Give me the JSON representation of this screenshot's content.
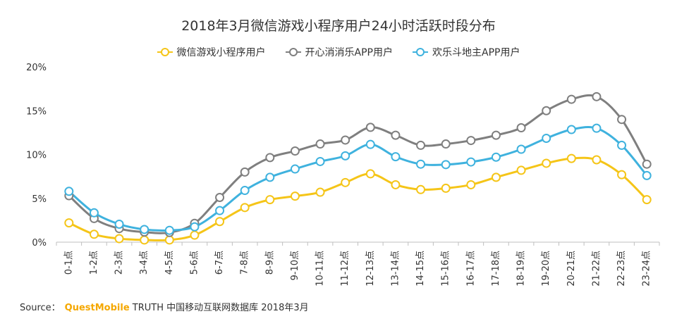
{
  "title": "2018年3月微信游戏小程序用户24小时活跃时段分布",
  "source": {
    "label": "Source：",
    "brand": "QuestMobile",
    "text": "TRUTH 中国移动互联网数据库 2018年3月"
  },
  "chart_data": {
    "type": "line",
    "title": "2018年3月微信游戏小程序用户24小时活跃时段分布",
    "xlabel": "",
    "ylabel": "",
    "ylim": [
      0,
      20
    ],
    "yticks": [
      "0%",
      "5%",
      "10%",
      "15%",
      "20%"
    ],
    "grid": false,
    "legend_position": "top",
    "categories": [
      "0-1点",
      "1-2点",
      "2-3点",
      "3-4点",
      "4-5点",
      "5-6点",
      "6-7点",
      "7-8点",
      "8-9点",
      "9-10点",
      "10-11点",
      "11-12点",
      "12-13点",
      "13-14点",
      "14-15点",
      "15-16点",
      "16-17点",
      "17-18点",
      "18-19点",
      "19-20点",
      "20-21点",
      "21-22点",
      "22-23点",
      "23-24点"
    ],
    "series": [
      {
        "name": "微信游戏小程序用户",
        "color": "#f5c518",
        "values": [
          2.2,
          0.9,
          0.4,
          0.25,
          0.25,
          0.8,
          2.35,
          3.95,
          4.85,
          5.25,
          5.7,
          6.8,
          7.8,
          6.55,
          6.0,
          6.15,
          6.55,
          7.4,
          8.2,
          9.0,
          9.55,
          9.4,
          7.7,
          4.85
        ]
      },
      {
        "name": "开心消消乐APP用户",
        "color": "#7f7f7f",
        "values": [
          5.3,
          2.7,
          1.55,
          1.15,
          1.1,
          2.15,
          5.1,
          8.0,
          9.65,
          10.4,
          11.2,
          11.65,
          13.1,
          12.2,
          11.05,
          11.2,
          11.6,
          12.2,
          13.05,
          15.0,
          16.3,
          16.6,
          14.0,
          8.9
        ]
      },
      {
        "name": "欢乐斗地主APP用户",
        "color": "#3fb2de",
        "values": [
          5.8,
          3.35,
          2.05,
          1.45,
          1.35,
          1.75,
          3.6,
          5.9,
          7.4,
          8.35,
          9.2,
          9.85,
          11.15,
          9.75,
          8.9,
          8.85,
          9.15,
          9.7,
          10.6,
          11.85,
          12.85,
          13.0,
          11.05,
          7.6
        ]
      }
    ]
  }
}
